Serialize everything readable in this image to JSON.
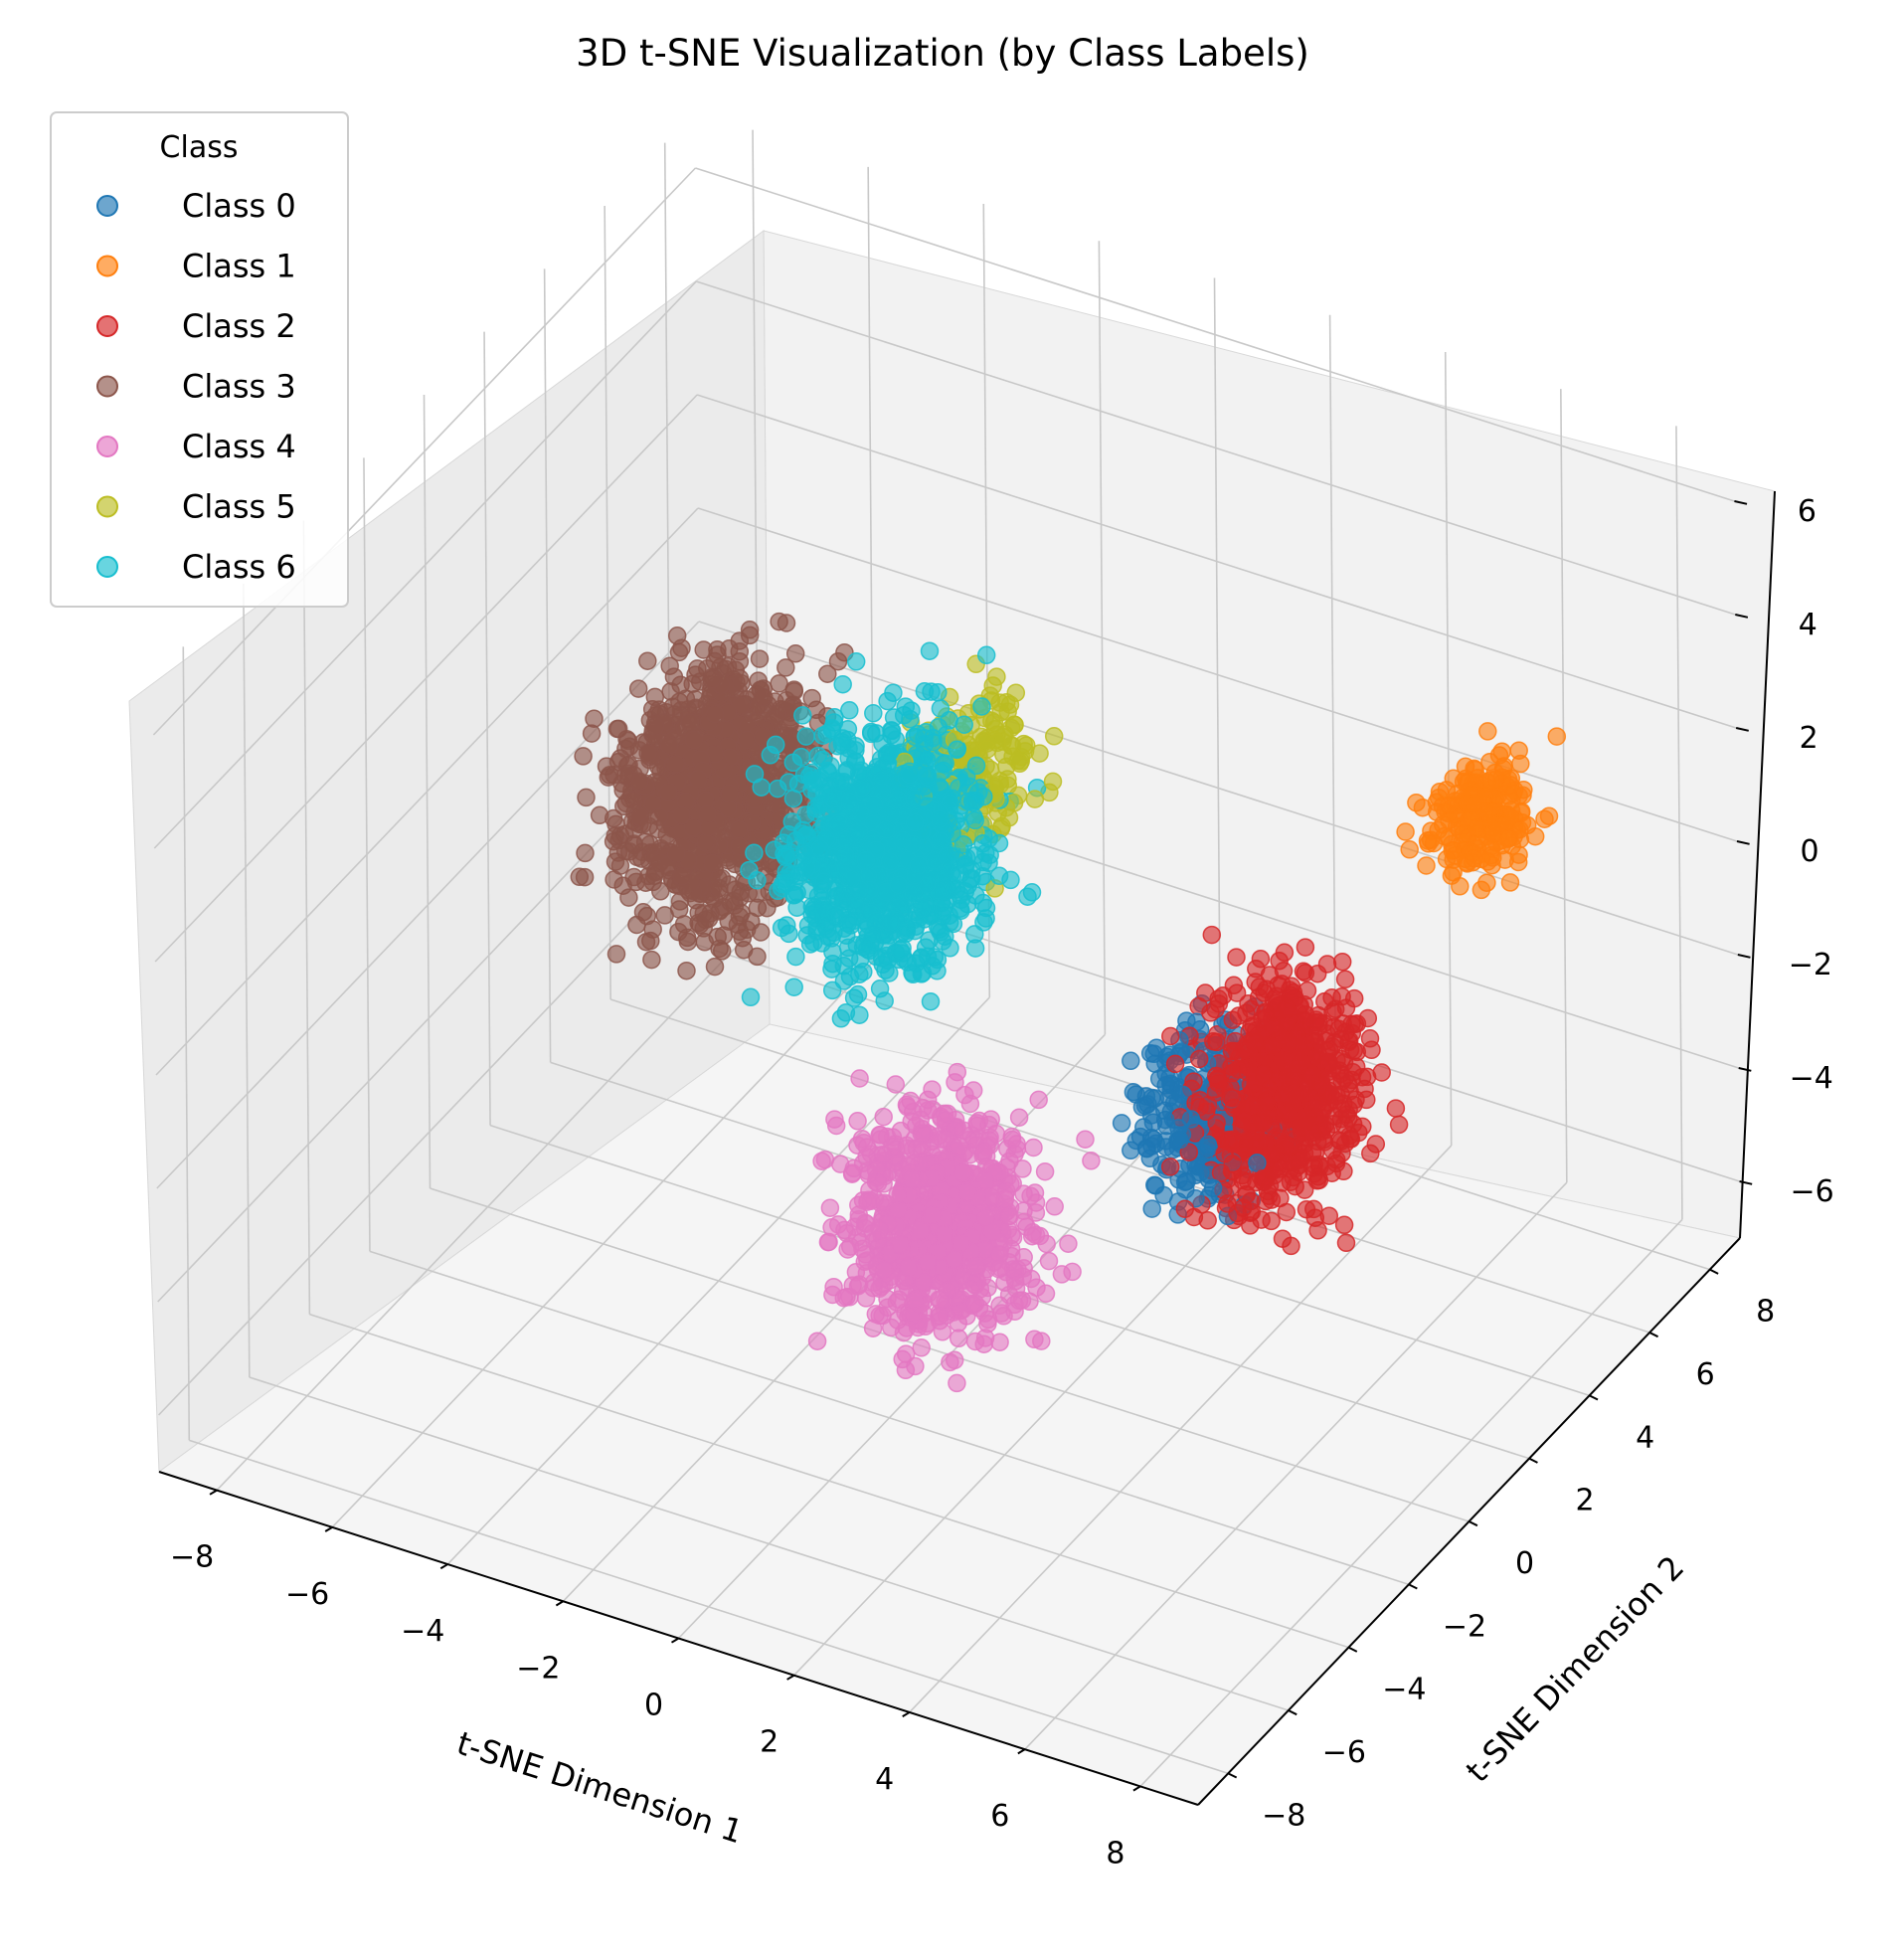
{
  "chart_data": {
    "type": "scatter",
    "projection": "3d",
    "title": "3D t-SNE Visualization (by Class Labels)",
    "xlabel": "t-SNE Dimension 1",
    "ylabel": "t-SNE Dimension 2",
    "zlabel": "",
    "xlim": [
      -9,
      9
    ],
    "ylim": [
      -9,
      9
    ],
    "zlim": [
      -7,
      7
    ],
    "xticks": [
      "−8",
      "−6",
      "−4",
      "−2",
      "0",
      "2",
      "4",
      "6",
      "8"
    ],
    "yticks": [
      "−8",
      "−6",
      "−4",
      "−2",
      "0",
      "2",
      "4",
      "6",
      "8"
    ],
    "zticks": [
      "−6",
      "−4",
      "−2",
      "0",
      "2",
      "4",
      "6"
    ],
    "grid": true,
    "legend": {
      "title": "Class",
      "position": "top-left",
      "entries": [
        "Class 0",
        "Class 1",
        "Class 2",
        "Class 3",
        "Class 4",
        "Class 5",
        "Class 6"
      ]
    },
    "series": [
      {
        "name": "Class 0",
        "color": "#1f77b4",
        "center": [
          4.0,
          1.0,
          -2.0
        ],
        "spread": [
          1.2,
          1.8,
          1.6
        ],
        "count": 300
      },
      {
        "name": "Class 1",
        "color": "#ff7f0e",
        "center": [
          7.5,
          3.5,
          3.0
        ],
        "spread": [
          0.9,
          1.4,
          1.1
        ],
        "count": 220
      },
      {
        "name": "Class 2",
        "color": "#d62728",
        "center": [
          5.0,
          1.5,
          -1.5
        ],
        "spread": [
          1.4,
          2.2,
          2.2
        ],
        "count": 800
      },
      {
        "name": "Class 3",
        "color": "#8c564b",
        "center": [
          -5.5,
          3.0,
          -0.5
        ],
        "spread": [
          1.6,
          2.6,
          2.4
        ],
        "count": 1200
      },
      {
        "name": "Class 4",
        "color": "#e377c2",
        "center": [
          1.5,
          -3.0,
          -2.5
        ],
        "spread": [
          1.8,
          2.0,
          2.2
        ],
        "count": 900
      },
      {
        "name": "Class 5",
        "color": "#bcbd22",
        "center": [
          -1.0,
          3.0,
          1.5
        ],
        "spread": [
          1.2,
          1.8,
          1.4
        ],
        "count": 150
      },
      {
        "name": "Class 6",
        "color": "#17becf",
        "center": [
          -1.5,
          1.0,
          1.0
        ],
        "spread": [
          1.8,
          2.4,
          2.4
        ],
        "count": 1100
      }
    ]
  }
}
